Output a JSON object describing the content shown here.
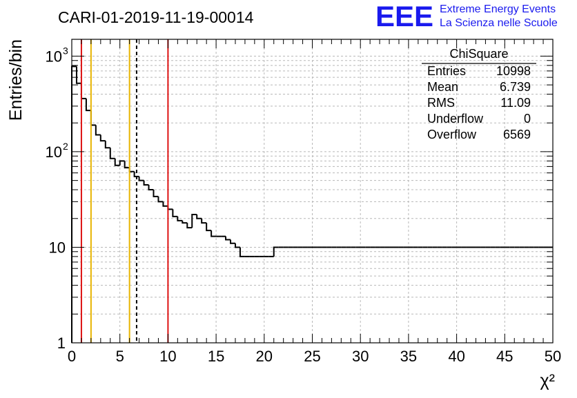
{
  "chart_data": {
    "type": "bar",
    "title": "CARI-01-2019-11-19-00014",
    "xlabel": "χ²",
    "ylabel": "Entries/bin",
    "xlim": [
      0,
      50
    ],
    "ylim": [
      1,
      1500
    ],
    "y_scale": "log",
    "grid": true,
    "bin_width": 0.5,
    "x_ticks": [
      "0",
      "5",
      "10",
      "15",
      "20",
      "25",
      "30",
      "35",
      "40",
      "45",
      "50"
    ],
    "y_ticks": [
      {
        "value": 1,
        "base": "1",
        "exp": ""
      },
      {
        "value": 10,
        "base": "10",
        "exp": ""
      },
      {
        "value": 100,
        "base": "10",
        "exp": "2"
      },
      {
        "value": 1000,
        "base": "10",
        "exp": "3"
      }
    ],
    "values": [
      780,
      520,
      360,
      270,
      190,
      150,
      130,
      110,
      85,
      72,
      80,
      68,
      62,
      55,
      50,
      45,
      40,
      34,
      30,
      27,
      25,
      21,
      19,
      18,
      16,
      22,
      20,
      18,
      15,
      13,
      13,
      13,
      12,
      11,
      10,
      8,
      8,
      8,
      8,
      8,
      8,
      8,
      10,
      10,
      10,
      10,
      10,
      10,
      10,
      10,
      10,
      10,
      10,
      10,
      10,
      10,
      10,
      10,
      10,
      10,
      10,
      10,
      10,
      10,
      10,
      10,
      10,
      10,
      10,
      10,
      10,
      10,
      10,
      10,
      10,
      10,
      10,
      10,
      10,
      10,
      10,
      10,
      10,
      10,
      10,
      10,
      10,
      10,
      10,
      10,
      10,
      10,
      10,
      10,
      10,
      10,
      10,
      10,
      10,
      10
    ],
    "reference_lines": [
      {
        "x": 1.0,
        "color": "#dd1111",
        "style": "solid"
      },
      {
        "x": 2.0,
        "color": "#e8b400",
        "style": "solid"
      },
      {
        "x": 6.0,
        "color": "#e8b400",
        "style": "solid"
      },
      {
        "x": 6.739,
        "color": "#000000",
        "style": "dashed"
      },
      {
        "x": 10.0,
        "color": "#dd1111",
        "style": "solid"
      }
    ],
    "stats_box": {
      "title": "ChiSquare",
      "rows": [
        {
          "label": "Entries",
          "value": "10998"
        },
        {
          "label": "Mean",
          "value": "6.739"
        },
        {
          "label": "RMS",
          "value": "11.09"
        },
        {
          "label": "Underflow",
          "value": "0"
        },
        {
          "label": "Overflow",
          "value": "6569"
        }
      ]
    },
    "logo": {
      "mark": "EEE",
      "line1": "Extreme Energy Events",
      "line2": "La Scienza nelle Scuole",
      "color": "#1a1aee"
    }
  }
}
